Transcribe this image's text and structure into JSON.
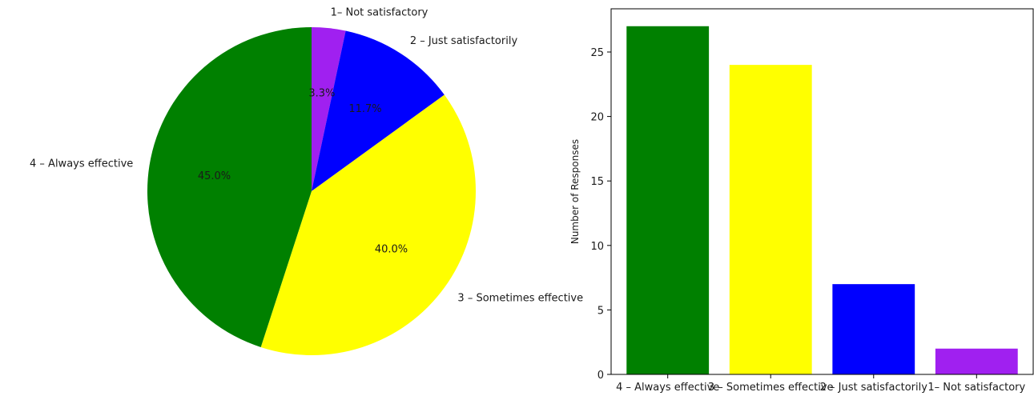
{
  "chart_data": [
    {
      "type": "pie",
      "title": "",
      "labels": [
        "1– Not satisfactory",
        "2 – Just satisfactorily",
        "3 – Sometimes effective",
        "4 – Always effective"
      ],
      "values": [
        2,
        7,
        24,
        27
      ],
      "percent_labels": [
        "3.3%",
        "11.7%",
        "40.0%",
        "45.0%"
      ],
      "colors": [
        "#a020f0",
        "#0000ff",
        "#ffff00",
        "#008000"
      ],
      "start_angle": 90,
      "direction": "clockwise"
    },
    {
      "type": "bar",
      "title": "",
      "categories": [
        "4 – Always effective",
        "3 – Sometimes effective",
        "2 – Just satisfactorily",
        "1– Not satisfactory"
      ],
      "values": [
        27,
        24,
        7,
        2
      ],
      "colors": [
        "#008000",
        "#ffff00",
        "#0000ff",
        "#a020f0"
      ],
      "xlabel": "",
      "ylabel": "Number of Responses",
      "ylim": [
        0,
        28.35
      ],
      "yticks": [
        0,
        5,
        10,
        15,
        20,
        25
      ],
      "grid": false
    }
  ]
}
